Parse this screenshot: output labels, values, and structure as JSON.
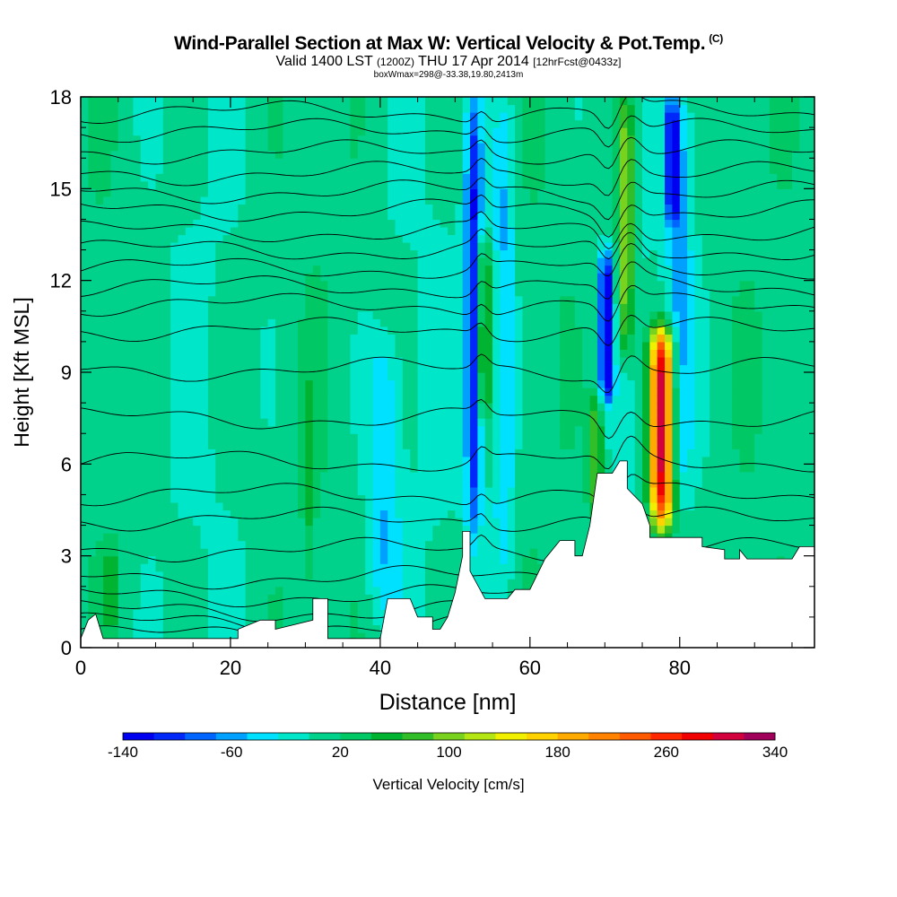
{
  "title": {
    "main": "Wind-Parallel Section at Max W: Vertical Velocity & Pot.Temp.",
    "copyright": "(C)",
    "valid_prefix": "Valid 1400 LST",
    "valid_utc": "(1200Z)",
    "valid_date": "THU 17 Apr 2014",
    "forecast": "[12hrFcst@0433z]",
    "box_info": "boxWmax=298@-33.38,19.80,2413m"
  },
  "chart_data": {
    "type": "heatmap",
    "xlabel": "Distance [nm]",
    "ylabel": "Height [Kft MSL]",
    "xlim": [
      0,
      98
    ],
    "ylim": [
      0,
      18
    ],
    "x_ticks": [
      "0",
      "20",
      "40",
      "60",
      "80"
    ],
    "y_ticks": [
      "0",
      "3",
      "6",
      "9",
      "12",
      "15",
      "18"
    ],
    "colorbar": {
      "label": "Vertical Velocity [cm/s]",
      "range": [
        -140,
        340
      ],
      "tick_labels": [
        "-140",
        "-60",
        "20",
        "100",
        "180",
        "260",
        "340"
      ],
      "colors": [
        "#0000f0",
        "#0028f8",
        "#0064ff",
        "#00a0ff",
        "#00e0ff",
        "#00e6c8",
        "#00d28c",
        "#00c864",
        "#00b432",
        "#32be28",
        "#78d21e",
        "#b4e614",
        "#f0f000",
        "#ffd200",
        "#ffaa00",
        "#ff8200",
        "#ff5a00",
        "#ff2800",
        "#f00000",
        "#d2003c",
        "#a0005a"
      ]
    },
    "terrain": [
      [
        0,
        0.3
      ],
      [
        1,
        0.9
      ],
      [
        2,
        1.1
      ],
      [
        3,
        0.3
      ],
      [
        8,
        0.3
      ],
      [
        8,
        0.3
      ],
      [
        21,
        0.3
      ],
      [
        21,
        0.6
      ],
      [
        24,
        0.9
      ],
      [
        26,
        0.9
      ],
      [
        26,
        0.6
      ],
      [
        31,
        0.9
      ],
      [
        31,
        1.6
      ],
      [
        33,
        1.6
      ],
      [
        33,
        0.9
      ],
      [
        33,
        0.3
      ],
      [
        40,
        0.3
      ],
      [
        41,
        1.6
      ],
      [
        44,
        1.6
      ],
      [
        45,
        1.0
      ],
      [
        47,
        1.0
      ],
      [
        47,
        0.6
      ],
      [
        48,
        0.6
      ],
      [
        49,
        1.0
      ],
      [
        50,
        1.8
      ],
      [
        51,
        3.0
      ],
      [
        51,
        3.8
      ],
      [
        52,
        3.8
      ],
      [
        52,
        2.5
      ],
      [
        54,
        1.6
      ],
      [
        57,
        1.6
      ],
      [
        58,
        1.9
      ],
      [
        60,
        1.9
      ],
      [
        62,
        2.9
      ],
      [
        64,
        3.5
      ],
      [
        66,
        3.5
      ],
      [
        66,
        3.0
      ],
      [
        67,
        3.0
      ],
      [
        68,
        4.0
      ],
      [
        69,
        5.7
      ],
      [
        71,
        5.7
      ],
      [
        72,
        6.1
      ],
      [
        73,
        6.1
      ],
      [
        73,
        5.2
      ],
      [
        75,
        4.7
      ],
      [
        76,
        4.0
      ],
      [
        76,
        3.6
      ],
      [
        83,
        3.6
      ],
      [
        83,
        3.3
      ],
      [
        86,
        3.2
      ],
      [
        86,
        2.9
      ],
      [
        88,
        2.9
      ],
      [
        88,
        3.2
      ],
      [
        88,
        3.2
      ],
      [
        89,
        2.9
      ],
      [
        89,
        2.9
      ],
      [
        95,
        2.9
      ],
      [
        96,
        3.3
      ],
      [
        98,
        3.3
      ]
    ],
    "isentropes": [
      {
        "label": "",
        "y": 0.4
      },
      {
        "label": "",
        "y": 0.8
      },
      {
        "label": "",
        "y": 1.2
      },
      {
        "label": "",
        "y": 1.7
      },
      {
        "label": "",
        "y": 2.3
      },
      {
        "label": "",
        "y": 3.2
      },
      {
        "label": "",
        "y": 4.2
      },
      {
        "label": "",
        "y": 5.0
      },
      {
        "label": "",
        "y": 6.1
      },
      {
        "label": "",
        "y": 7.5
      },
      {
        "label": "",
        "y": 9.1
      },
      {
        "label": "",
        "y": 10.4
      },
      {
        "label": "",
        "y": 11.2
      },
      {
        "label": "",
        "y": 11.8
      },
      {
        "label": "",
        "y": 12.4
      },
      {
        "label": "",
        "y": 13.0
      },
      {
        "label": "",
        "y": 13.6
      },
      {
        "label": "",
        "y": 14.3
      },
      {
        "label": "",
        "y": 14.9
      },
      {
        "label": "",
        "y": 15.5
      },
      {
        "label": "",
        "y": 16.2
      },
      {
        "label": "",
        "y": 16.9
      },
      {
        "label": "",
        "y": 17.5
      }
    ]
  }
}
